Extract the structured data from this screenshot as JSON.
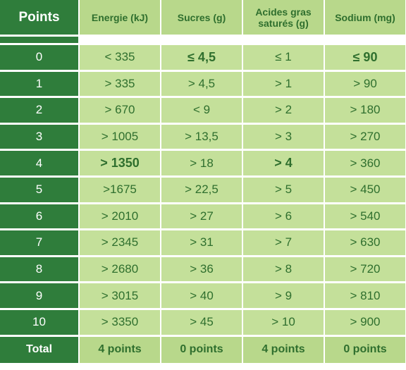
{
  "headers": [
    "Points",
    "Energie (kJ)",
    "Sucres (g)",
    "Acides gras saturés (g)",
    "Sodium (mg)"
  ],
  "rows": [
    {
      "points": "0",
      "energie": "< 335",
      "sucres": "≤ 4,5",
      "acides": "≤ 1",
      "sodium": "≤ 90"
    },
    {
      "points": "1",
      "energie": "> 335",
      "sucres": "> 4,5",
      "acides": "> 1",
      "sodium": "> 90"
    },
    {
      "points": "2",
      "energie": "> 670",
      "sucres": "< 9",
      "acides": "> 2",
      "sodium": "> 180"
    },
    {
      "points": "3",
      "energie": "> 1005",
      "sucres": "> 13,5",
      "acides": "> 3",
      "sodium": "> 270"
    },
    {
      "points": "4",
      "energie": "> 1350",
      "sucres": "> 18",
      "acides": "> 4",
      "sodium": "> 360"
    },
    {
      "points": "5",
      "energie": ">1675",
      "sucres": "> 22,5",
      "acides": "> 5",
      "sodium": "> 450"
    },
    {
      "points": "6",
      "energie": "> 2010",
      "sucres": "> 27",
      "acides": "> 6",
      "sodium": "> 540"
    },
    {
      "points": "7",
      "energie": "> 2345",
      "sucres": "> 31",
      "acides": "> 7",
      "sodium": "> 630"
    },
    {
      "points": "8",
      "energie": "> 2680",
      "sucres": "> 36",
      "acides": "> 8",
      "sodium": "> 720"
    },
    {
      "points": "9",
      "energie": "> 3015",
      "sucres": "> 40",
      "acides": "> 9",
      "sodium": "> 810"
    },
    {
      "points": "10",
      "energie": "> 3350",
      "sucres": "> 45",
      "acides": "> 10",
      "sodium": "> 900"
    }
  ],
  "highlighted": {
    "energie": "> 1350",
    "sucres": "≤ 4,5",
    "acides": "> 4",
    "sodium": "≤ 90"
  },
  "total": {
    "label": "Total",
    "energie": "4 points",
    "sucres": "0 points",
    "acides": "4 points",
    "sodium": "0 points"
  },
  "colors": {
    "dark_green": "#2f7d3b",
    "light_green": "#c4e09a",
    "header_green": "#b8d88b",
    "text_green": "#2f6f2e"
  }
}
